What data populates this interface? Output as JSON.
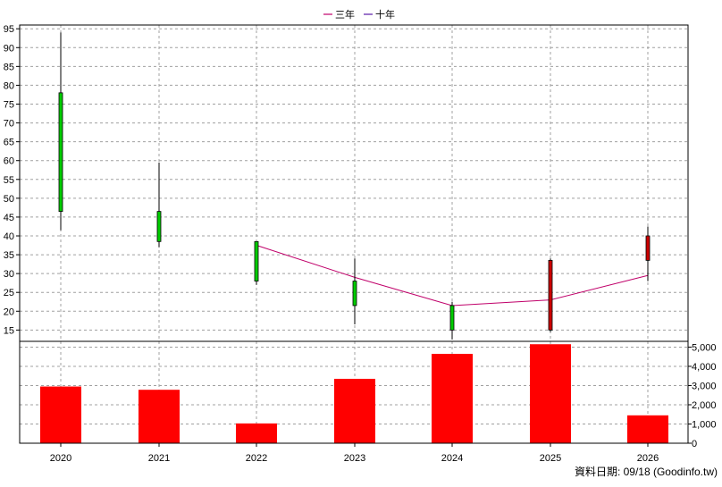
{
  "legend": [
    {
      "label": "三年",
      "color": "#c0006a"
    },
    {
      "label": "十年",
      "color": "#5a1aa8"
    }
  ],
  "footer": "資料日期: 09/18  (Goodinfo.tw)",
  "chart_data": {
    "type": "candlestick+bar",
    "categories": [
      "2020",
      "2021",
      "2022",
      "2023",
      "2024",
      "2025",
      "2026"
    ],
    "price": {
      "ylim": [
        12,
        96
      ],
      "ticks": [
        15,
        20,
        25,
        30,
        35,
        40,
        45,
        50,
        55,
        60,
        65,
        70,
        75,
        80,
        85,
        90,
        95
      ],
      "candles": [
        {
          "open": 46.5,
          "close": 78,
          "high": 94,
          "low": 41.5,
          "color": "#00cc00"
        },
        {
          "open": 38.5,
          "close": 46.5,
          "high": 59.5,
          "low": 37,
          "color": "#00cc00"
        },
        {
          "open": 28,
          "close": 38.5,
          "high": 38.5,
          "low": 27,
          "color": "#00cc00"
        },
        {
          "open": 21.5,
          "close": 28,
          "high": 34,
          "low": 16.5,
          "color": "#00cc00"
        },
        {
          "open": 15,
          "close": 21.5,
          "high": 22.5,
          "low": 12.5,
          "color": "#00cc00"
        },
        {
          "open": 15,
          "close": 33.5,
          "high": 34,
          "low": 14.5,
          "color": "#cc0000"
        },
        {
          "open": 33.5,
          "close": 40,
          "high": 42.5,
          "low": 28,
          "color": "#cc0000"
        }
      ],
      "lines": [
        {
          "name": "三年",
          "color": "#c0006a",
          "values": [
            null,
            null,
            37.5,
            29,
            21.5,
            23,
            29.5
          ]
        }
      ]
    },
    "volume": {
      "ylim": [
        0,
        5300
      ],
      "ticks": [
        0,
        1000,
        2000,
        3000,
        4000,
        5000
      ],
      "tick_labels": [
        "0",
        "1,000",
        "2,000",
        "3,000",
        "4,000",
        "5,000"
      ],
      "values": [
        2950,
        2780,
        1030,
        3350,
        4650,
        5150,
        1450
      ],
      "color": "#ff0000"
    }
  }
}
